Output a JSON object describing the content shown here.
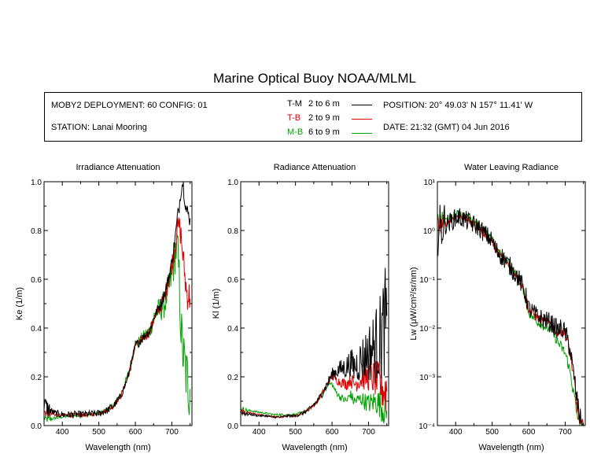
{
  "title": "Marine Optical Buoy NOAA/MLML",
  "info": {
    "deployment": "MOBY2 DEPLOYMENT: 60 CONFIG: 01",
    "station": "STATION: Lanai Mooring",
    "position": "POSITION: 20° 49.03' N   157° 11.41' W",
    "date": "DATE: 21:32 (GMT) 04 Jun 2016",
    "legend": [
      {
        "code": "T-M",
        "range": "2 to 6  m",
        "color": "#000000"
      },
      {
        "code": "T-B",
        "range": "2 to 9  m",
        "color": "#dd0000"
      },
      {
        "code": "M-B",
        "range": "6 to 9  m",
        "color": "#00a000"
      }
    ]
  },
  "colors": {
    "T-M": "#000000",
    "T-B": "#dd0000",
    "M-B": "#00a000"
  },
  "chart_data": [
    {
      "type": "line",
      "title": "Irradiance Attenuation",
      "xlabel": "Wavelength (nm)",
      "ylabel": "Ke  (1/m)",
      "xlim": [
        350,
        755
      ],
      "ylim": [
        0,
        1
      ],
      "yscale": "linear",
      "xticks": [
        400,
        500,
        600,
        700
      ],
      "yticks": [
        "0.0",
        "0.2",
        "0.4",
        "0.6",
        "0.8",
        "1.0"
      ],
      "series": [
        {
          "code": "T-M",
          "noise": [
            0.015,
            0.04
          ],
          "x": [
            350,
            360,
            380,
            400,
            420,
            440,
            460,
            480,
            500,
            520,
            540,
            560,
            580,
            590,
            600,
            605,
            610,
            620,
            640,
            650,
            660,
            670,
            680,
            690,
            700,
            710,
            715,
            720,
            725,
            730,
            740,
            750
          ],
          "y": [
            0.09,
            0.07,
            0.05,
            0.045,
            0.045,
            0.045,
            0.046,
            0.048,
            0.05,
            0.06,
            0.08,
            0.12,
            0.2,
            0.26,
            0.33,
            0.335,
            0.34,
            0.36,
            0.39,
            0.44,
            0.47,
            0.5,
            0.54,
            0.6,
            0.67,
            0.78,
            0.85,
            0.9,
            0.97,
            1.0,
            0.88,
            0.85
          ]
        },
        {
          "code": "T-B",
          "noise": [
            0.008,
            0.08
          ],
          "x": [
            350,
            360,
            380,
            400,
            420,
            440,
            460,
            480,
            500,
            520,
            540,
            560,
            580,
            590,
            600,
            605,
            610,
            620,
            640,
            650,
            660,
            670,
            680,
            690,
            700,
            710,
            715,
            720,
            725,
            730,
            740,
            750
          ],
          "y": [
            0.06,
            0.055,
            0.045,
            0.042,
            0.043,
            0.044,
            0.045,
            0.047,
            0.05,
            0.06,
            0.08,
            0.12,
            0.2,
            0.26,
            0.33,
            0.335,
            0.34,
            0.355,
            0.385,
            0.435,
            0.465,
            0.49,
            0.53,
            0.59,
            0.66,
            0.75,
            0.8,
            0.82,
            0.78,
            0.7,
            0.55,
            0.52
          ]
        },
        {
          "code": "M-B",
          "noise": [
            0.006,
            0.16
          ],
          "x": [
            350,
            360,
            380,
            400,
            420,
            440,
            460,
            480,
            500,
            520,
            540,
            560,
            580,
            590,
            600,
            605,
            610,
            620,
            640,
            650,
            660,
            670,
            680,
            690,
            700,
            710,
            715,
            720,
            725,
            730,
            740,
            750
          ],
          "y": [
            0.03,
            0.025,
            0.03,
            0.035,
            0.04,
            0.042,
            0.044,
            0.046,
            0.05,
            0.065,
            0.085,
            0.125,
            0.21,
            0.27,
            0.335,
            0.34,
            0.345,
            0.36,
            0.39,
            0.44,
            0.47,
            0.48,
            0.5,
            0.55,
            0.62,
            0.72,
            0.73,
            0.6,
            0.4,
            0.3,
            0.2,
            0.15
          ]
        }
      ]
    },
    {
      "type": "line",
      "title": "Radiance Attenuation",
      "xlabel": "Wavelength (nm)",
      "ylabel": "Kl  (1/m)",
      "xlim": [
        350,
        755
      ],
      "ylim": [
        0,
        1
      ],
      "yscale": "linear",
      "xticks": [
        400,
        500,
        600,
        700
      ],
      "yticks": [
        "0.0",
        "0.2",
        "0.4",
        "0.6",
        "0.8",
        "1.0"
      ],
      "series": [
        {
          "code": "T-M",
          "noise": [
            0.004,
            0.25
          ],
          "x": [
            350,
            360,
            380,
            400,
            420,
            440,
            460,
            480,
            500,
            520,
            540,
            560,
            580,
            590,
            600,
            610,
            620,
            640,
            650,
            660,
            680,
            700,
            720,
            730,
            740,
            750
          ],
          "y": [
            0.055,
            0.05,
            0.045,
            0.04,
            0.04,
            0.035,
            0.035,
            0.04,
            0.04,
            0.05,
            0.07,
            0.1,
            0.15,
            0.18,
            0.21,
            0.22,
            0.23,
            0.24,
            0.26,
            0.24,
            0.27,
            0.3,
            0.33,
            0.35,
            0.4,
            0.45
          ]
        },
        {
          "code": "T-B",
          "noise": [
            0.004,
            0.12
          ],
          "x": [
            350,
            360,
            380,
            400,
            420,
            440,
            460,
            480,
            500,
            520,
            540,
            560,
            580,
            590,
            600,
            610,
            620,
            640,
            650,
            660,
            680,
            700,
            720,
            730,
            740,
            750
          ],
          "y": [
            0.06,
            0.055,
            0.05,
            0.045,
            0.04,
            0.035,
            0.035,
            0.04,
            0.04,
            0.05,
            0.07,
            0.1,
            0.15,
            0.18,
            0.2,
            0.19,
            0.18,
            0.17,
            0.19,
            0.17,
            0.19,
            0.2,
            0.19,
            0.17,
            0.15,
            0.14
          ]
        },
        {
          "code": "M-B",
          "noise": [
            0.004,
            0.08
          ],
          "x": [
            350,
            360,
            380,
            400,
            420,
            440,
            460,
            480,
            500,
            520,
            540,
            560,
            580,
            590,
            600,
            610,
            620,
            640,
            650,
            660,
            680,
            700,
            720,
            730,
            740,
            750
          ],
          "y": [
            0.07,
            0.065,
            0.06,
            0.055,
            0.05,
            0.045,
            0.045,
            0.045,
            0.045,
            0.055,
            0.07,
            0.1,
            0.15,
            0.17,
            0.17,
            0.14,
            0.12,
            0.1,
            0.13,
            0.1,
            0.11,
            0.09,
            0.1,
            0.09,
            0.07,
            0.06
          ]
        }
      ]
    },
    {
      "type": "line",
      "title": "Water Leaving Radiance",
      "xlabel": "Wavelength (nm)",
      "ylabel": "Lw  (μW/cm²/sr/nm)",
      "xlim": [
        350,
        755
      ],
      "ylim": [
        0.0001,
        10
      ],
      "yscale": "log",
      "xticks": [
        400,
        500,
        600,
        700
      ],
      "yticks": [
        "10⁻⁴",
        "10⁻³",
        "10⁻²",
        "10⁻¹",
        "10⁰",
        "10¹"
      ],
      "series": [
        {
          "code": "T-M",
          "noise": [
            0.2,
            0.2
          ],
          "x": [
            350,
            360,
            380,
            400,
            410,
            420,
            440,
            460,
            480,
            500,
            510,
            520,
            540,
            560,
            580,
            590,
            600,
            620,
            640,
            660,
            680,
            690,
            700,
            710,
            720,
            730,
            740,
            750
          ],
          "y": [
            0.9,
            1.2,
            1.4,
            1.8,
            1.9,
            1.7,
            1.45,
            1.2,
            0.85,
            0.6,
            0.4,
            0.33,
            0.22,
            0.14,
            0.08,
            0.05,
            0.025,
            0.018,
            0.015,
            0.013,
            0.009,
            0.01,
            0.008,
            0.0045,
            0.0015,
            0.0004,
            0.00015,
            0.0001
          ]
        },
        {
          "code": "T-B",
          "noise": [
            0.08,
            0.15
          ],
          "x": [
            350,
            360,
            380,
            400,
            410,
            420,
            440,
            460,
            480,
            500,
            510,
            520,
            540,
            560,
            580,
            590,
            600,
            620,
            640,
            660,
            680,
            690,
            700,
            710,
            720,
            730,
            740,
            750
          ],
          "y": [
            1.2,
            1.3,
            1.5,
            1.9,
            2.1,
            1.9,
            1.5,
            1.2,
            0.85,
            0.6,
            0.4,
            0.33,
            0.22,
            0.14,
            0.08,
            0.05,
            0.025,
            0.017,
            0.014,
            0.012,
            0.008,
            0.009,
            0.0075,
            0.004,
            0.0013,
            0.0003,
            0.0001,
            0.0001
          ]
        },
        {
          "code": "M-B",
          "noise": [
            0.08,
            0.15
          ],
          "x": [
            350,
            360,
            380,
            400,
            410,
            420,
            440,
            460,
            480,
            500,
            510,
            520,
            540,
            560,
            580,
            590,
            600,
            620,
            640,
            660,
            680,
            690,
            700,
            710,
            720,
            730,
            740,
            750
          ],
          "y": [
            1.4,
            1.5,
            1.7,
            2.1,
            2.3,
            2.1,
            1.7,
            1.35,
            0.95,
            0.65,
            0.42,
            0.35,
            0.23,
            0.14,
            0.075,
            0.045,
            0.02,
            0.014,
            0.011,
            0.009,
            0.005,
            0.004,
            0.003,
            0.0016,
            0.0006,
            0.0002,
            0.0001,
            0.0001
          ]
        }
      ]
    }
  ]
}
